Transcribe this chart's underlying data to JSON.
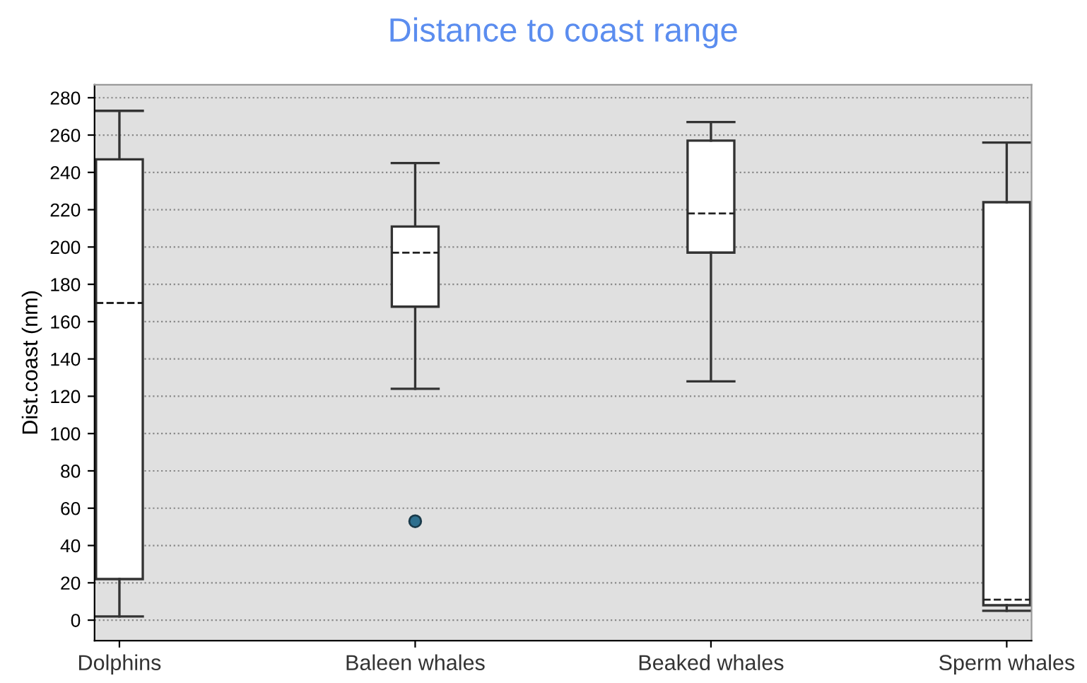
{
  "chart_data": {
    "type": "box",
    "title": "Distance to coast range",
    "ylabel": "Dist.coast (nm)",
    "categories": [
      "Dolphins",
      "Baleen whales",
      "Beaked whales",
      "Sperm whales"
    ],
    "boxes": [
      {
        "low": 2,
        "q1": 22,
        "median": 170,
        "q3": 247,
        "high": 273
      },
      {
        "low": 124,
        "q1": 168,
        "median": 197,
        "q3": 211,
        "high": 245,
        "outliers": [
          53
        ]
      },
      {
        "low": 128,
        "q1": 197,
        "median": 218,
        "q3": 257,
        "high": 267
      },
      {
        "low": 5,
        "q1": 8,
        "median": 11,
        "q3": 224,
        "high": 256
      }
    ],
    "ylim": [
      -11,
      287
    ],
    "yticks": [
      0,
      20,
      40,
      60,
      80,
      100,
      120,
      140,
      160,
      180,
      200,
      220,
      240,
      260,
      280
    ],
    "grid": "y"
  }
}
